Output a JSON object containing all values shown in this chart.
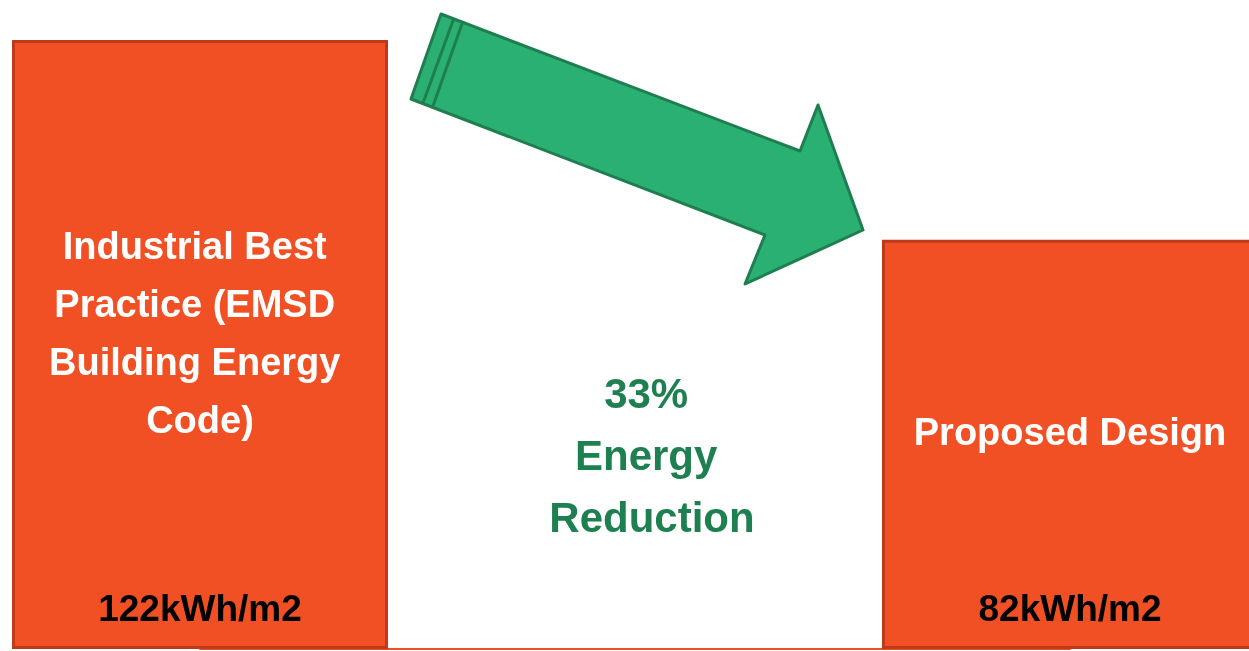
{
  "chart_data": {
    "type": "bar",
    "categories": [
      "Industrial Best Practice (EMSD Building Energy Code)",
      "Proposed Design"
    ],
    "values": [
      122,
      82
    ],
    "value_labels": [
      "122kWh/m2",
      "82kWh/m2"
    ],
    "color": "#f15025",
    "annotations": [
      "33% Energy Reduction"
    ]
  }
}
